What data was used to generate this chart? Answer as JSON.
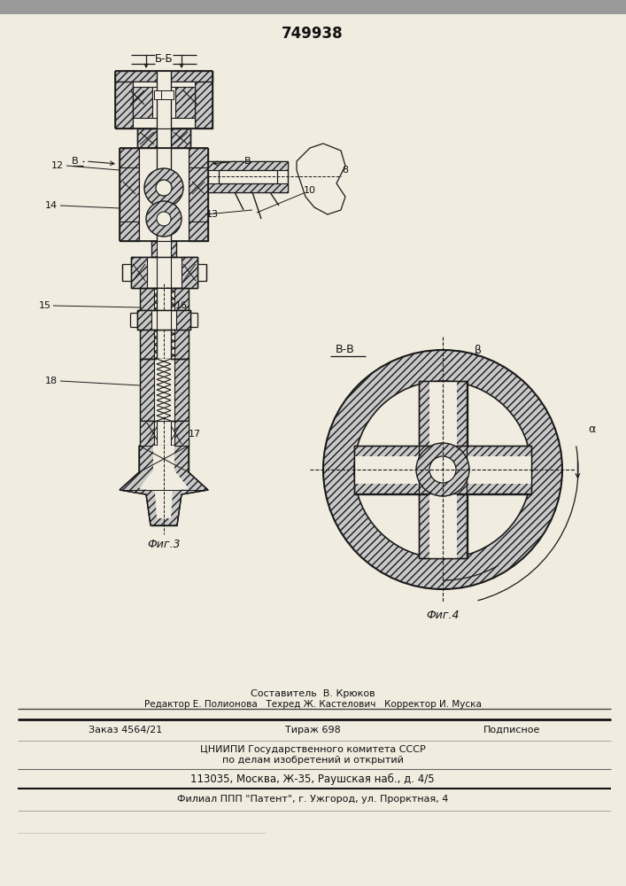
{
  "patent_number": "749938",
  "fig3_label": "Фиг.3",
  "fig4_label": "Фиг.4",
  "section_bb": "Б-Б",
  "section_vv": "В-В",
  "footer_line1": "Составитель  В. Крюков",
  "footer_line2": "Редактор Е. Полионова   Техред Ж. Кастелович   Корректор И. Муска",
  "footer_line4": "ЦНИИПИ Государственного комитета СССР",
  "footer_line5": "по делам изобретений и открытий",
  "footer_line6": "113035, Москва, Ж-35, Раушская наб., д. 4/5",
  "footer_line7": "Филиал ППП \"Патент\", г. Ужгород, ул. Прорктная, 4",
  "bg_color": "#f0ece0",
  "line_color": "#1a1a1a",
  "hatch_color": "#333333",
  "label_color": "#111111"
}
